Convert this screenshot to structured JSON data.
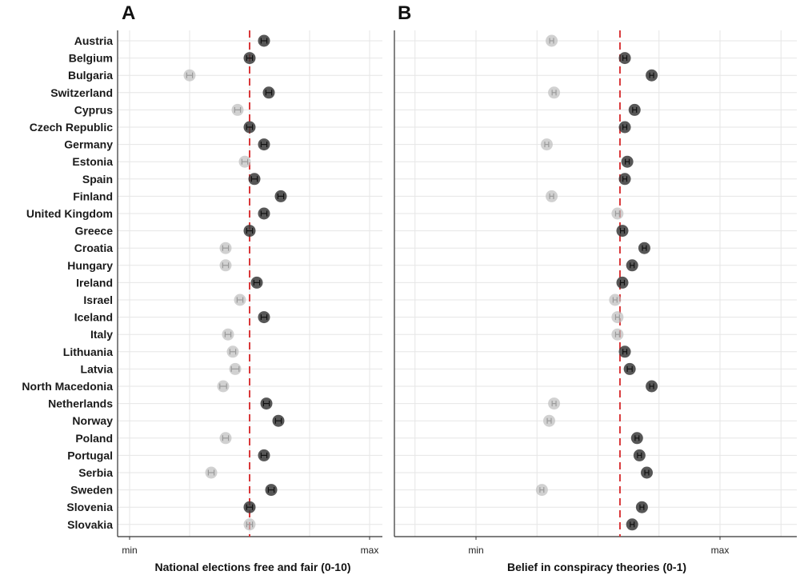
{
  "panels": [
    {
      "letter": "A",
      "xlabel": "National elections free and fair (0-10)",
      "min_label": "min",
      "max_label": "max"
    },
    {
      "letter": "B",
      "xlabel": "Belief in conspiracy theories (0-1)",
      "min_label": "min",
      "max_label": "max"
    }
  ],
  "chart_data": [
    {
      "type": "scatter",
      "title": "",
      "xlabel": "National elections free and fair (0-10)",
      "x_tick_labels": [
        "min",
        "max"
      ],
      "xlim": [
        0,
        1
      ],
      "grid": true,
      "reference_line": {
        "x": 0.5,
        "style": "dashed",
        "color": "#d9383a"
      },
      "categories": [
        "Austria",
        "Belgium",
        "Bulgaria",
        "Switzerland",
        "Cyprus",
        "Czech Republic",
        "Germany",
        "Estonia",
        "Spain",
        "Finland",
        "United Kingdom",
        "Greece",
        "Croatia",
        "Hungary",
        "Ireland",
        "Israel",
        "Iceland",
        "Italy",
        "Lithuania",
        "Latvia",
        "North Macedonia",
        "Netherlands",
        "Norway",
        "Poland",
        "Portugal",
        "Serbia",
        "Sweden",
        "Slovenia",
        "Slovakia"
      ],
      "values": [
        0.56,
        0.5,
        0.25,
        0.58,
        0.45,
        0.5,
        0.56,
        0.48,
        0.52,
        0.63,
        0.56,
        0.5,
        0.4,
        0.4,
        0.53,
        0.46,
        0.56,
        0.41,
        0.43,
        0.44,
        0.39,
        0.57,
        0.62,
        0.4,
        0.56,
        0.34,
        0.59,
        0.5,
        0.5
      ],
      "intervals": [
        0.012,
        0.012,
        0.012,
        0.012,
        0.012,
        0.012,
        0.012,
        0.012,
        0.012,
        0.012,
        0.012,
        0.012,
        0.012,
        0.012,
        0.012,
        0.012,
        0.012,
        0.012,
        0.012,
        0.016,
        0.014,
        0.012,
        0.012,
        0.012,
        0.012,
        0.012,
        0.012,
        0.012,
        0.012
      ],
      "highlighted": [
        true,
        true,
        false,
        true,
        false,
        true,
        true,
        false,
        true,
        true,
        true,
        true,
        false,
        false,
        true,
        false,
        true,
        false,
        false,
        false,
        false,
        true,
        true,
        false,
        true,
        false,
        true,
        true,
        false
      ]
    },
    {
      "type": "scatter",
      "title": "",
      "xlabel": "Belief in conspiracy theories (0-1)",
      "x_tick_labels": [
        "min",
        "max"
      ],
      "xlim": [
        0,
        1
      ],
      "grid": true,
      "reference_line": {
        "x": 0.59,
        "style": "dashed",
        "color": "#d9383a"
      },
      "categories": [
        "Austria",
        "Belgium",
        "Bulgaria",
        "Switzerland",
        "Cyprus",
        "Czech Republic",
        "Germany",
        "Estonia",
        "Spain",
        "Finland",
        "United Kingdom",
        "Greece",
        "Croatia",
        "Hungary",
        "Ireland",
        "Israel",
        "Iceland",
        "Italy",
        "Lithuania",
        "Latvia",
        "North Macedonia",
        "Netherlands",
        "Norway",
        "Poland",
        "Portugal",
        "Serbia",
        "Sweden",
        "Slovenia",
        "Slovakia"
      ],
      "values": [
        0.31,
        0.61,
        0.72,
        0.32,
        0.65,
        0.61,
        0.29,
        0.62,
        0.61,
        0.31,
        0.58,
        0.6,
        0.69,
        0.64,
        0.6,
        0.57,
        0.58,
        0.58,
        0.61,
        0.63,
        0.72,
        0.32,
        0.3,
        0.66,
        0.67,
        0.7,
        0.27,
        0.68,
        0.64
      ],
      "intervals": [
        0.008,
        0.008,
        0.008,
        0.008,
        0.008,
        0.008,
        0.008,
        0.008,
        0.008,
        0.008,
        0.008,
        0.008,
        0.008,
        0.008,
        0.008,
        0.008,
        0.008,
        0.008,
        0.008,
        0.01,
        0.008,
        0.008,
        0.008,
        0.008,
        0.008,
        0.008,
        0.008,
        0.008,
        0.008
      ],
      "highlighted": [
        false,
        true,
        true,
        false,
        true,
        true,
        false,
        true,
        true,
        false,
        false,
        true,
        true,
        true,
        true,
        false,
        false,
        false,
        true,
        true,
        true,
        false,
        false,
        true,
        true,
        true,
        false,
        true,
        true
      ]
    }
  ],
  "colors": {
    "highlight_point": "#3a3a3a",
    "muted_point": "#bdbdbd",
    "reference_line": "#d9383a",
    "grid": "#e6e6e6",
    "axis": "#333333"
  }
}
